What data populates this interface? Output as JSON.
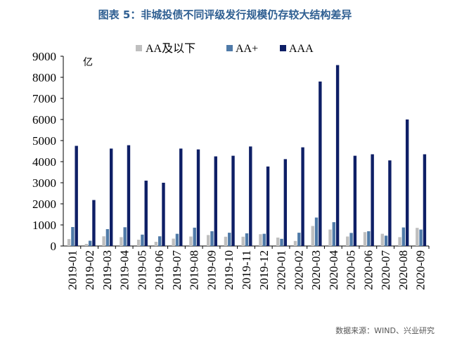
{
  "title": "图表 5：非城投债不同评级发行规模仍存较大结构差异",
  "unit": "亿",
  "source": "数据来源：WIND、兴业研究",
  "chart_data": {
    "type": "bar",
    "ylim": [
      0,
      9000
    ],
    "yticks": [
      0,
      1000,
      2000,
      3000,
      4000,
      5000,
      6000,
      7000,
      8000,
      9000
    ],
    "legend_position": "top",
    "categories": [
      "2019-01",
      "2019-02",
      "2019-03",
      "2019-04",
      "2019-05",
      "2019-06",
      "2019-07",
      "2019-08",
      "2019-09",
      "2019-10",
      "2019-11",
      "2019-12",
      "2020-01",
      "2020-02",
      "2020-03",
      "2020-04",
      "2020-05",
      "2020-06",
      "2020-07",
      "2020-08",
      "2020-09"
    ],
    "series": [
      {
        "name": "AA及以下",
        "color": "#bfbfbf",
        "values": [
          330,
          100,
          460,
          420,
          300,
          200,
          350,
          450,
          520,
          440,
          440,
          560,
          400,
          240,
          950,
          780,
          450,
          660,
          580,
          420,
          860
        ]
      },
      {
        "name": "AA+",
        "color": "#4f7aa8",
        "values": [
          900,
          250,
          800,
          890,
          540,
          460,
          580,
          870,
          700,
          630,
          600,
          580,
          340,
          630,
          1350,
          1130,
          620,
          700,
          490,
          880,
          780
        ]
      },
      {
        "name": "AAA",
        "color": "#0e1f66",
        "values": [
          4750,
          2180,
          4620,
          4780,
          3100,
          3000,
          4620,
          4580,
          4250,
          4280,
          4720,
          3770,
          4120,
          4680,
          7800,
          8580,
          4280,
          4350,
          4060,
          6000,
          4350
        ]
      }
    ]
  }
}
